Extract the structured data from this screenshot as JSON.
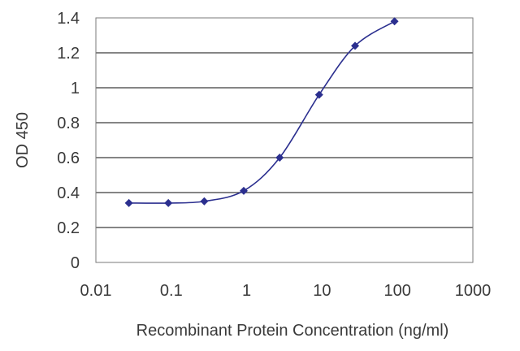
{
  "chart_data": {
    "type": "line",
    "title": "",
    "xlabel": "Recombinant Protein Concentration (ng/ml)",
    "ylabel": "OD 450",
    "x_scale": "log",
    "xlim": [
      0.01,
      1000
    ],
    "ylim": [
      0,
      1.4
    ],
    "x_ticks": [
      "0.01",
      "0.1",
      "1",
      "10",
      "100",
      "1000"
    ],
    "y_ticks": [
      "0",
      "0.2",
      "0.4",
      "0.6",
      "0.8",
      "1",
      "1.2",
      "1.4"
    ],
    "grid": "horizontal",
    "legend": "none",
    "series": [
      {
        "color": "#2b2f8f",
        "marker": "diamond",
        "points": [
          {
            "x": 0.0274,
            "y": 0.34
          },
          {
            "x": 0.0914,
            "y": 0.34
          },
          {
            "x": 0.274,
            "y": 0.35
          },
          {
            "x": 0.914,
            "y": 0.41
          },
          {
            "x": 2.74,
            "y": 0.6
          },
          {
            "x": 9.14,
            "y": 0.96
          },
          {
            "x": 27.4,
            "y": 1.24
          },
          {
            "x": 91.4,
            "y": 1.38
          }
        ]
      }
    ]
  }
}
